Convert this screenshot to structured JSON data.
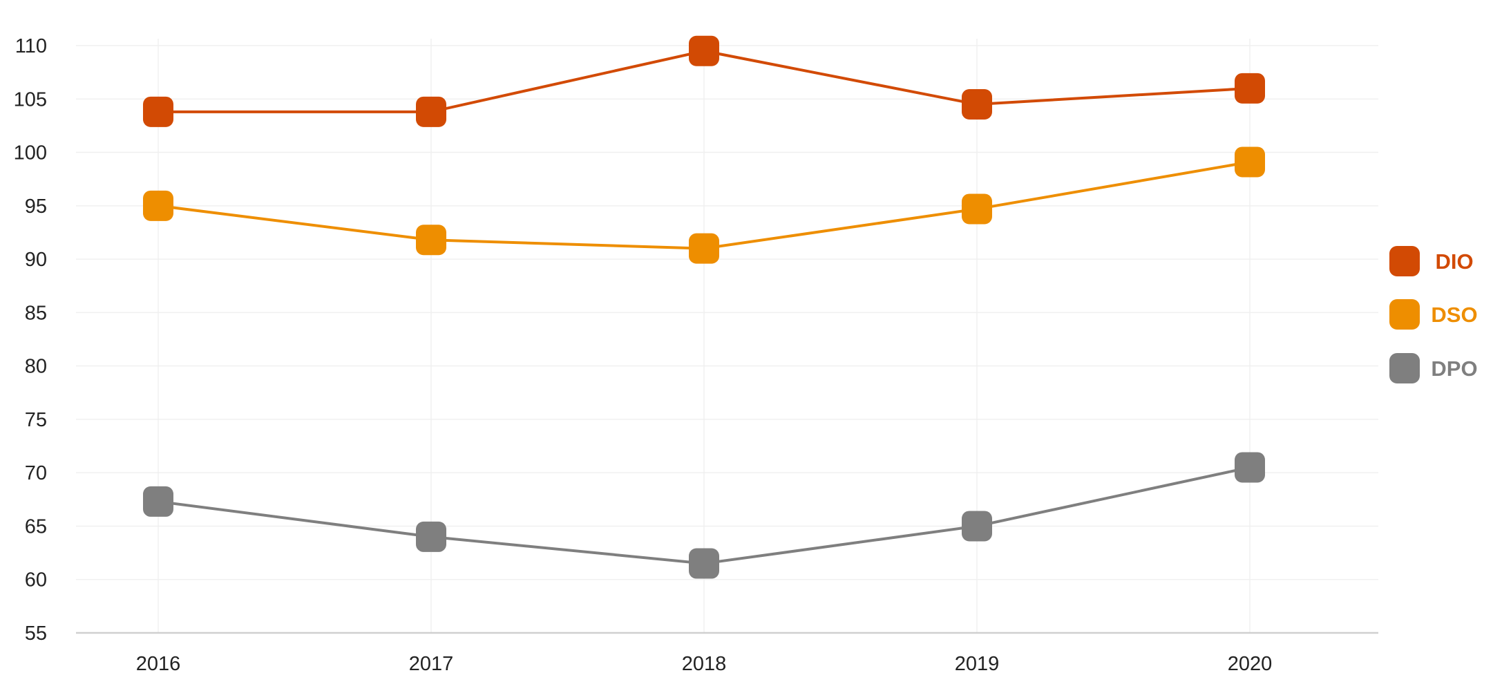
{
  "chart_data": {
    "type": "line",
    "categories": [
      "2016",
      "2017",
      "2018",
      "2019",
      "2020"
    ],
    "ylim": [
      55,
      110
    ],
    "yticks": [
      55,
      60,
      65,
      70,
      75,
      80,
      85,
      90,
      95,
      100,
      105,
      110
    ],
    "grid": true,
    "legend_position": "right",
    "series": [
      {
        "name": "DIO",
        "color": "#d24a04",
        "values": [
          103.8,
          103.8,
          109.5,
          104.5,
          106.0
        ]
      },
      {
        "name": "DSO",
        "color": "#ee8e00",
        "values": [
          95.0,
          91.8,
          91.0,
          94.7,
          99.1
        ]
      },
      {
        "name": "DPO",
        "color": "#7f7f7f",
        "values": [
          67.3,
          64.0,
          61.5,
          65.0,
          70.5
        ]
      }
    ]
  }
}
